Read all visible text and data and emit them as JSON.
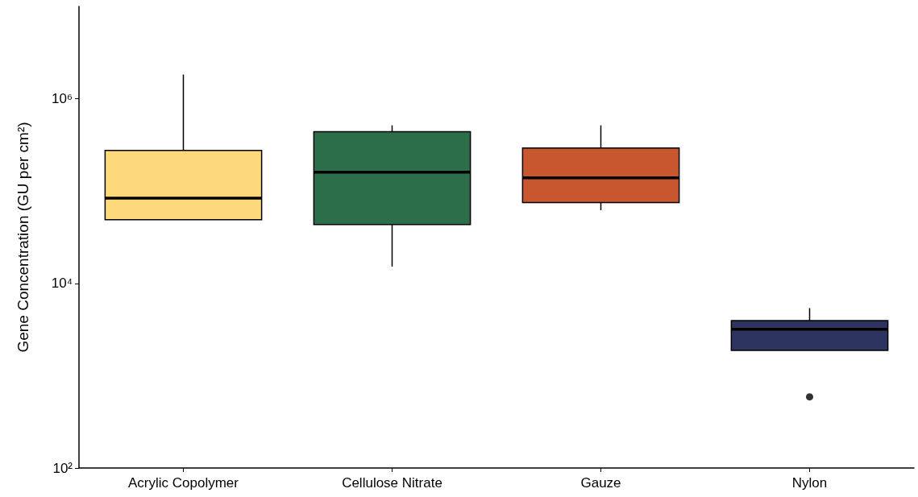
{
  "chart_data": {
    "type": "box",
    "ylabel": "Gene Concentration (GU per cm²)",
    "categories": [
      "Acrylic Copolymer",
      "Cellulose Nitrate",
      "Gauze",
      "Nylon"
    ],
    "colors": [
      "#fdd97c",
      "#2d6e4a",
      "#c8562e",
      "#2e3460"
    ],
    "boxes": [
      {
        "low": 49000,
        "q1": 49000,
        "median": 84000,
        "q3": 276000,
        "high": 1830000
      },
      {
        "low": 15200,
        "q1": 43500,
        "median": 160000,
        "q3": 439000,
        "high": 515000
      },
      {
        "low": 62000,
        "q1": 75000,
        "median": 139000,
        "q3": 293000,
        "high": 515000
      },
      {
        "low": 1880,
        "q1": 1880,
        "median": 3180,
        "q3": 3960,
        "high": 5400,
        "outliers": [
          590
        ]
      }
    ],
    "log": "y",
    "ylim": [
      100,
      10000000
    ],
    "yticks": [
      {
        "value": 100,
        "label": "10²"
      },
      {
        "value": 10000,
        "label": "10⁴"
      },
      {
        "value": 1000000,
        "label": "10⁶"
      }
    ],
    "grid": false
  }
}
